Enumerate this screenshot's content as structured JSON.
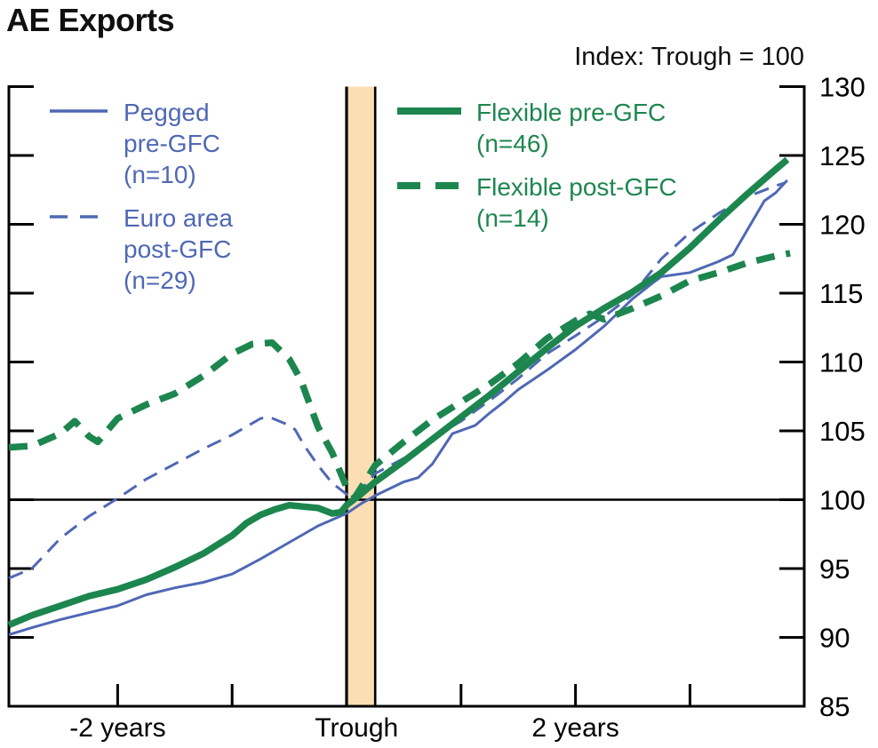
{
  "title": "AE Exports",
  "subtitle": "Index: Trough = 100",
  "colors": {
    "blue": "#4f68b5",
    "green": "#1d864f",
    "band_fill": "#fbdeb4",
    "axis": "#000000",
    "background": "#ffffff"
  },
  "chart_data": {
    "type": "line",
    "title": "AE Exports",
    "annotation": "Index: Trough = 100",
    "x_unit": "quarters relative to trough",
    "xlim": [
      -12,
      16
    ],
    "ylim": [
      85,
      130
    ],
    "grid": "off",
    "reference_line_y": 100,
    "trough_band": {
      "t_from": 0,
      "t_to": 1
    },
    "y_axis": {
      "side": "right",
      "ticks": [
        130,
        125,
        120,
        115,
        110,
        105,
        100,
        95,
        90,
        85
      ]
    },
    "x_axis": {
      "ticks": [
        {
          "t": -8,
          "label": "-2 years",
          "mark": true
        },
        {
          "t": -4,
          "label": "",
          "mark": true
        },
        {
          "t": 0.35,
          "label": "Trough",
          "mark": false
        },
        {
          "t": 4,
          "label": "",
          "mark": true
        },
        {
          "t": 8,
          "label": "2 years",
          "mark": true
        },
        {
          "t": 12,
          "label": "",
          "mark": true
        }
      ]
    },
    "series": [
      {
        "name": "Pegged pre-GFC (n=10)",
        "legend_lines": [
          "Pegged",
          "pre-GFC",
          "(n=10)"
        ],
        "color": "#4f68b5",
        "style": "solid",
        "width": 3,
        "dash": null,
        "points": [
          [
            -11.8,
            90.2
          ],
          [
            -11,
            90.7
          ],
          [
            -10,
            91.3
          ],
          [
            -9,
            91.8
          ],
          [
            -8,
            92.3
          ],
          [
            -7,
            93.1
          ],
          [
            -6,
            93.6
          ],
          [
            -5,
            94.0
          ],
          [
            -4,
            94.6
          ],
          [
            -3,
            95.7
          ],
          [
            -2,
            96.9
          ],
          [
            -1,
            98.1
          ],
          [
            0,
            99.0
          ],
          [
            0.5,
            99.7
          ],
          [
            1,
            100.3
          ],
          [
            2,
            101.3
          ],
          [
            2.5,
            101.6
          ],
          [
            3,
            102.6
          ],
          [
            3.7,
            104.8
          ],
          [
            4.5,
            105.4
          ],
          [
            5,
            106.3
          ],
          [
            5.5,
            107.1
          ],
          [
            6,
            108.0
          ],
          [
            7,
            109.4
          ],
          [
            8,
            110.9
          ],
          [
            9,
            112.6
          ],
          [
            10,
            114.6
          ],
          [
            10.8,
            115.9
          ],
          [
            11,
            116.2
          ],
          [
            12,
            116.5
          ],
          [
            13,
            117.3
          ],
          [
            13.5,
            117.8
          ],
          [
            14.6,
            121.7
          ],
          [
            15,
            122.3
          ],
          [
            15.4,
            123.2
          ]
        ]
      },
      {
        "name": "Euro area post-GFC (n=29)",
        "legend_lines": [
          "Euro area",
          "post-GFC",
          "(n=29)"
        ],
        "color": "#4f68b5",
        "style": "dashed",
        "width": 3,
        "dash": "17,10",
        "points": [
          [
            -11.8,
            94.3
          ],
          [
            -11,
            95.0
          ],
          [
            -10,
            97.2
          ],
          [
            -9,
            98.8
          ],
          [
            -8,
            100.1
          ],
          [
            -7,
            101.5
          ],
          [
            -6,
            102.6
          ],
          [
            -5,
            103.7
          ],
          [
            -4,
            104.7
          ],
          [
            -3,
            105.9
          ],
          [
            -2.7,
            106.0
          ],
          [
            -2,
            105.4
          ],
          [
            -1.8,
            105.1
          ],
          [
            -1.5,
            104.0
          ],
          [
            -1,
            102.5
          ],
          [
            -0.5,
            101.2
          ],
          [
            0,
            100.4
          ],
          [
            0.3,
            100.2
          ],
          [
            1,
            101.9
          ],
          [
            2,
            103.0
          ],
          [
            3,
            104.5
          ],
          [
            4,
            105.7
          ],
          [
            5,
            107.2
          ],
          [
            6,
            108.8
          ],
          [
            7,
            110.6
          ],
          [
            8,
            111.9
          ],
          [
            9,
            113.3
          ],
          [
            10,
            114.9
          ],
          [
            11,
            117.5
          ],
          [
            12,
            119.4
          ],
          [
            13,
            120.8
          ],
          [
            14,
            122.0
          ],
          [
            15,
            122.8
          ],
          [
            15.3,
            123.0
          ]
        ]
      },
      {
        "name": "Flexible pre-GFC (n=46)",
        "legend_lines": [
          "Flexible pre-GFC",
          "(n=46)"
        ],
        "color": "#1d864f",
        "style": "solid",
        "width": 7.5,
        "dash": null,
        "points": [
          [
            -11.8,
            90.9
          ],
          [
            -11,
            91.6
          ],
          [
            -10,
            92.3
          ],
          [
            -9,
            93.0
          ],
          [
            -8,
            93.5
          ],
          [
            -7,
            94.2
          ],
          [
            -6,
            95.1
          ],
          [
            -5,
            96.1
          ],
          [
            -4,
            97.4
          ],
          [
            -3.5,
            98.3
          ],
          [
            -3,
            98.9
          ],
          [
            -2.5,
            99.3
          ],
          [
            -2,
            99.6
          ],
          [
            -1.5,
            99.5
          ],
          [
            -1,
            99.4
          ],
          [
            -0.5,
            99.0
          ],
          [
            -0.2,
            99.1
          ],
          [
            0,
            99.6
          ],
          [
            0.5,
            100.4
          ],
          [
            1,
            101.3
          ],
          [
            2,
            102.8
          ],
          [
            3,
            104.4
          ],
          [
            4,
            106.0
          ],
          [
            5,
            107.6
          ],
          [
            6,
            109.3
          ],
          [
            7,
            111.0
          ],
          [
            8,
            112.6
          ],
          [
            9,
            113.9
          ],
          [
            10,
            115.1
          ],
          [
            11,
            116.5
          ],
          [
            12,
            118.3
          ],
          [
            13,
            120.3
          ],
          [
            14,
            122.2
          ],
          [
            15,
            124.0
          ],
          [
            15.4,
            124.7
          ]
        ]
      },
      {
        "name": "Flexible post-GFC (n=14)",
        "legend_lines": [
          "Flexible post-GFC",
          "(n=14)"
        ],
        "color": "#1d864f",
        "style": "dashed",
        "width": 7.5,
        "dash": "21,13",
        "points": [
          [
            -11.8,
            103.8
          ],
          [
            -11,
            103.9
          ],
          [
            -10,
            104.8
          ],
          [
            -9.5,
            105.7
          ],
          [
            -9,
            104.6
          ],
          [
            -8.7,
            104.2
          ],
          [
            -8,
            105.9
          ],
          [
            -7,
            106.9
          ],
          [
            -6,
            107.7
          ],
          [
            -5,
            109.0
          ],
          [
            -4,
            110.6
          ],
          [
            -3.3,
            111.3
          ],
          [
            -2.6,
            111.4
          ],
          [
            -2,
            110.2
          ],
          [
            -1.6,
            108.7
          ],
          [
            -1,
            105.3
          ],
          [
            -0.5,
            103.4
          ],
          [
            0,
            100.9
          ],
          [
            0.3,
            100.2
          ],
          [
            1,
            102.5
          ],
          [
            2,
            104.2
          ],
          [
            3,
            105.8
          ],
          [
            4,
            107.1
          ],
          [
            5,
            108.4
          ],
          [
            6,
            109.9
          ],
          [
            7,
            111.7
          ],
          [
            8,
            113.0
          ],
          [
            8.5,
            113.5
          ],
          [
            9,
            113.1
          ],
          [
            10,
            113.9
          ],
          [
            11,
            114.8
          ],
          [
            12,
            115.9
          ],
          [
            13,
            116.5
          ],
          [
            14,
            117.2
          ],
          [
            15,
            117.7
          ],
          [
            15.5,
            117.9
          ]
        ]
      }
    ]
  }
}
